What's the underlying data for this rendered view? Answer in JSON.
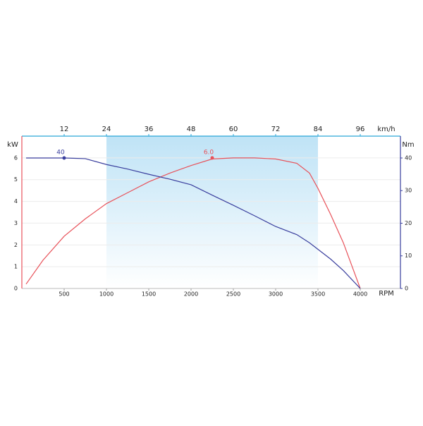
{
  "chart_data": {
    "type": "line",
    "x_label": "RPM",
    "x2_label": "km/h",
    "y_label": "kW",
    "y2_label": "Nm",
    "x": [
      50,
      250,
      500,
      750,
      1000,
      1250,
      1500,
      1750,
      2000,
      2250,
      2500,
      2750,
      3000,
      3250,
      3400,
      3500,
      3650,
      3800,
      4000
    ],
    "series": [
      {
        "color": "#e8525a",
        "values": [
          0.2,
          1.3,
          2.4,
          3.2,
          3.9,
          4.4,
          4.9,
          5.3,
          5.65,
          5.95,
          6.0,
          6.0,
          5.95,
          5.75,
          5.3,
          4.6,
          3.4,
          2.1,
          0
        ]
      },
      {
        "color": "#3a3f9e",
        "axis": "y2",
        "values": [
          40,
          40,
          40,
          39.8,
          38,
          36.6,
          35,
          33.5,
          31.8,
          28.6,
          25.5,
          22.3,
          19,
          16.5,
          14,
          12,
          9,
          5.5,
          0
        ]
      }
    ],
    "annotations": [
      {
        "text": "40",
        "x": 500,
        "y": 40,
        "axis": "y2",
        "color": "#3a3f9e"
      },
      {
        "text": "6.0",
        "x": 2250,
        "y": 6.0,
        "color": "#e8525a"
      }
    ],
    "highlight": [
      1000,
      3500
    ],
    "xlim": [
      0,
      4475
    ],
    "xticks": [
      500,
      1000,
      1500,
      2000,
      2500,
      3000,
      3500,
      4000
    ],
    "x2lim": [
      0,
      107.4
    ],
    "x2ticks": [
      12,
      24,
      36,
      48,
      60,
      72,
      84,
      96
    ],
    "ylim": [
      0,
      7
    ],
    "yticks": [
      0,
      1,
      2,
      3,
      4,
      5,
      6
    ],
    "y2lim": [
      0,
      46.7
    ],
    "y2ticks": [
      0,
      10,
      20,
      30,
      40
    ],
    "grid": true
  }
}
